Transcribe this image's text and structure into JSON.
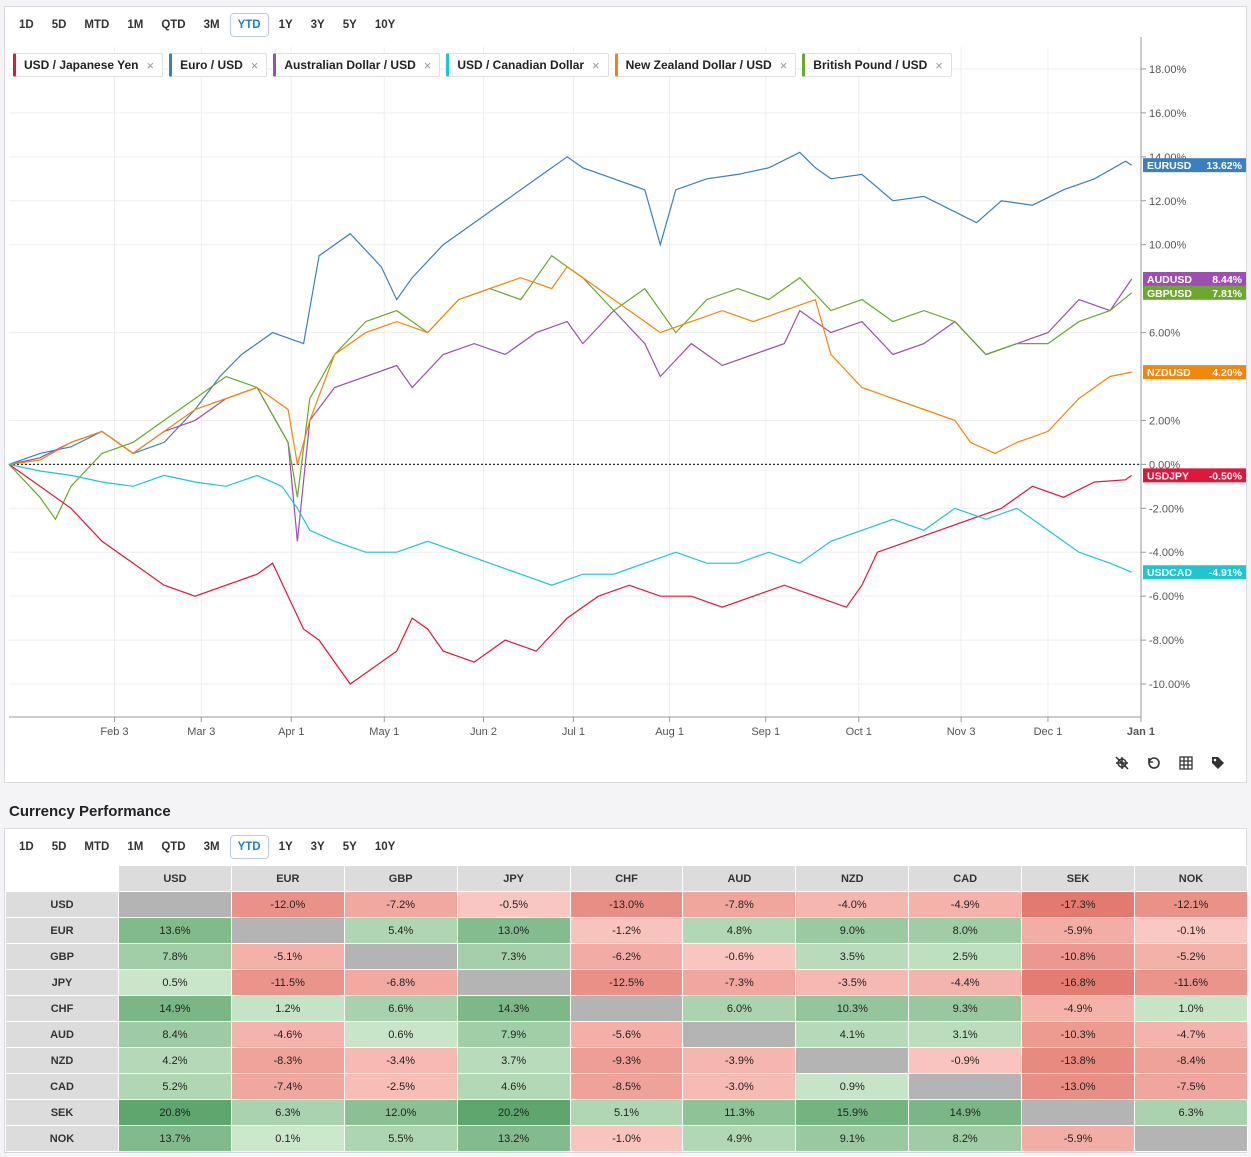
{
  "ranges": [
    "1D",
    "5D",
    "MTD",
    "1M",
    "QTD",
    "3M",
    "YTD",
    "1Y",
    "3Y",
    "5Y",
    "10Y"
  ],
  "active_range": "YTD",
  "legend": [
    {
      "label": "USD / Japanese Yen",
      "color": "#e0173c"
    },
    {
      "label": "Euro / USD",
      "color": "#3a7fc0"
    },
    {
      "label": "Australian Dollar / USD",
      "color": "#9b4fb0"
    },
    {
      "label": "USD / Canadian Dollar",
      "color": "#1ec6cf"
    },
    {
      "label": "New Zealand Dollar / USD",
      "color": "#f2860a"
    },
    {
      "label": "British Pound / USD",
      "color": "#6aa82e"
    }
  ],
  "chart_data": {
    "type": "line",
    "title": "",
    "xlabel": "",
    "ylabel": "",
    "ylim": [
      -11.5,
      19
    ],
    "ytick_values": [
      18,
      16,
      14,
      12,
      10,
      6,
      2,
      0,
      -2,
      -4,
      -6,
      -8,
      -10
    ],
    "ytick_labels": [
      "18.00%",
      "16.00%",
      "14.00%",
      "12.00%",
      "10.00%",
      "6.00%",
      "2.00%",
      "0.00%",
      "-2.00%",
      "-4.00%",
      "-6.00%",
      "-8.00%",
      "-10.00%"
    ],
    "x_range": [
      0,
      365
    ],
    "x_ticks": [
      {
        "label": "Feb 3",
        "day": 34
      },
      {
        "label": "Mar 3",
        "day": 62
      },
      {
        "label": "Apr 1",
        "day": 91
      },
      {
        "label": "May 1",
        "day": 121
      },
      {
        "label": "Jun 2",
        "day": 153
      },
      {
        "label": "Jul 1",
        "day": 182
      },
      {
        "label": "Aug 1",
        "day": 213
      },
      {
        "label": "Sep 1",
        "day": 244
      },
      {
        "label": "Oct 1",
        "day": 274
      },
      {
        "label": "Nov 3",
        "day": 307
      },
      {
        "label": "Dec 1",
        "day": 335
      },
      {
        "label": "Jan 1",
        "day": 365
      }
    ],
    "series": [
      {
        "name": "EURUSD",
        "color": "#3a7fc0",
        "last_label": "13.62%",
        "x": [
          0,
          10,
          20,
          30,
          40,
          50,
          60,
          68,
          75,
          85,
          95,
          100,
          105,
          110,
          120,
          125,
          130,
          140,
          150,
          160,
          170,
          180,
          185,
          195,
          205,
          210,
          215,
          225,
          235,
          245,
          255,
          260,
          265,
          275,
          285,
          295,
          305,
          312,
          320,
          330,
          340,
          350,
          360,
          362
        ],
        "y": [
          0,
          0.5,
          0.8,
          1.5,
          0.5,
          1.0,
          2.5,
          4.0,
          5.0,
          6.0,
          5.5,
          9.5,
          10.0,
          10.5,
          9.0,
          7.5,
          8.5,
          10.0,
          11.0,
          12.0,
          13.0,
          14.0,
          13.5,
          13.0,
          12.5,
          10.0,
          12.5,
          13.0,
          13.2,
          13.5,
          14.2,
          13.5,
          13.0,
          13.2,
          12.0,
          12.2,
          11.5,
          11.0,
          12.0,
          11.8,
          12.5,
          13.0,
          13.8,
          13.62
        ]
      },
      {
        "name": "AUDUSD",
        "color": "#9b4fb0",
        "last_label": "8.44%",
        "x": [
          0,
          10,
          20,
          30,
          40,
          50,
          60,
          70,
          80,
          90,
          93,
          97,
          105,
          115,
          125,
          130,
          140,
          150,
          160,
          170,
          180,
          185,
          195,
          205,
          210,
          220,
          230,
          240,
          250,
          255,
          265,
          275,
          285,
          295,
          305,
          315,
          325,
          335,
          345,
          355,
          362
        ],
        "y": [
          0,
          0.3,
          1.0,
          1.5,
          0.5,
          1.5,
          2.0,
          3.0,
          3.5,
          1.0,
          -3.5,
          2.0,
          3.5,
          4.0,
          4.5,
          3.5,
          5.0,
          5.5,
          5.0,
          6.0,
          6.5,
          5.5,
          7.0,
          5.5,
          4.0,
          5.5,
          4.5,
          5.0,
          5.5,
          7.0,
          6.0,
          6.5,
          5.0,
          5.5,
          6.5,
          5.0,
          5.5,
          6.0,
          7.5,
          7.0,
          8.44
        ]
      },
      {
        "name": "GBPUSD",
        "color": "#6aa82e",
        "last_label": "7.81%",
        "x": [
          0,
          10,
          15,
          20,
          30,
          40,
          50,
          60,
          70,
          80,
          90,
          93,
          97,
          105,
          115,
          125,
          135,
          145,
          155,
          165,
          175,
          185,
          195,
          205,
          215,
          225,
          235,
          245,
          255,
          265,
          275,
          285,
          295,
          305,
          315,
          325,
          335,
          345,
          355,
          362
        ],
        "y": [
          0,
          -1.5,
          -2.5,
          -1.0,
          0.5,
          1.0,
          2.0,
          3.0,
          4.0,
          3.5,
          1.0,
          -1.5,
          3.0,
          5.0,
          6.5,
          7.0,
          6.0,
          7.5,
          8.0,
          7.5,
          9.5,
          8.5,
          7.0,
          8.0,
          6.0,
          7.5,
          8.0,
          7.5,
          8.5,
          7.0,
          7.5,
          6.5,
          7.0,
          6.5,
          5.0,
          5.5,
          5.5,
          6.5,
          7.0,
          7.81
        ]
      },
      {
        "name": "NZDUSD",
        "color": "#f2860a",
        "last_label": "4.20%",
        "x": [
          0,
          10,
          20,
          30,
          40,
          50,
          60,
          70,
          80,
          90,
          93,
          97,
          105,
          115,
          125,
          135,
          145,
          155,
          165,
          175,
          180,
          190,
          200,
          210,
          220,
          230,
          240,
          250,
          260,
          265,
          275,
          285,
          295,
          305,
          310,
          318,
          325,
          335,
          345,
          355,
          362
        ],
        "y": [
          0,
          0.2,
          1.0,
          1.5,
          0.5,
          1.5,
          2.5,
          3.0,
          3.5,
          2.5,
          0,
          2.0,
          5.0,
          6.0,
          6.5,
          6.0,
          7.5,
          8.0,
          8.5,
          8.0,
          9.0,
          8.0,
          7.0,
          6.0,
          6.5,
          7.0,
          6.5,
          7.0,
          7.5,
          5.0,
          3.5,
          3.0,
          2.5,
          2.0,
          1.0,
          0.5,
          1.0,
          1.5,
          3.0,
          4.0,
          4.2
        ]
      },
      {
        "name": "USDJPY",
        "color": "#e0173c",
        "last_label": "-0.50%",
        "x": [
          0,
          10,
          20,
          30,
          40,
          50,
          60,
          70,
          80,
          85,
          90,
          95,
          100,
          105,
          110,
          115,
          120,
          125,
          130,
          135,
          140,
          150,
          160,
          170,
          180,
          190,
          200,
          210,
          220,
          230,
          240,
          250,
          260,
          270,
          275,
          280,
          290,
          300,
          310,
          320,
          330,
          340,
          350,
          360,
          362
        ],
        "y": [
          0,
          -1.0,
          -2.0,
          -3.5,
          -4.5,
          -5.5,
          -6.0,
          -5.5,
          -5.0,
          -4.5,
          -6.0,
          -7.5,
          -8.0,
          -9.0,
          -10.0,
          -9.5,
          -9.0,
          -8.5,
          -7.0,
          -7.5,
          -8.5,
          -9.0,
          -8.0,
          -8.5,
          -7.0,
          -6.0,
          -5.5,
          -6.0,
          -6.0,
          -6.5,
          -6.0,
          -5.5,
          -6.0,
          -6.5,
          -5.5,
          -4.0,
          -3.5,
          -3.0,
          -2.5,
          -2.0,
          -1.0,
          -1.5,
          -0.8,
          -0.7,
          -0.5
        ]
      },
      {
        "name": "USDCAD",
        "color": "#1ec6cf",
        "last_label": "-4.91%",
        "x": [
          0,
          10,
          20,
          30,
          40,
          50,
          60,
          70,
          80,
          88,
          93,
          97,
          105,
          115,
          125,
          135,
          145,
          155,
          165,
          175,
          185,
          195,
          205,
          215,
          225,
          235,
          245,
          255,
          265,
          275,
          285,
          295,
          305,
          315,
          325,
          335,
          345,
          355,
          362
        ],
        "y": [
          0,
          -0.3,
          -0.5,
          -0.8,
          -1.0,
          -0.5,
          -0.8,
          -1.0,
          -0.5,
          -1.0,
          -2.0,
          -3.0,
          -3.5,
          -4.0,
          -4.0,
          -3.5,
          -4.0,
          -4.5,
          -5.0,
          -5.5,
          -5.0,
          -5.0,
          -4.5,
          -4.0,
          -4.5,
          -4.5,
          -4.0,
          -4.5,
          -3.5,
          -3.0,
          -2.5,
          -3.0,
          -2.0,
          -2.5,
          -2.0,
          -3.0,
          -4.0,
          -4.5,
          -4.91
        ]
      }
    ]
  },
  "perf_title": "Currency Performance",
  "table": {
    "columns": [
      "USD",
      "EUR",
      "GBP",
      "JPY",
      "CHF",
      "AUD",
      "NZD",
      "CAD",
      "SEK",
      "NOK"
    ],
    "rows": [
      {
        "label": "USD",
        "values": [
          "",
          "-12.0%",
          "-7.2%",
          "-0.5%",
          "-13.0%",
          "-7.8%",
          "-4.0%",
          "-4.9%",
          "-17.3%",
          "-12.1%"
        ]
      },
      {
        "label": "EUR",
        "values": [
          "13.6%",
          "",
          "5.4%",
          "13.0%",
          "-1.2%",
          "4.8%",
          "9.0%",
          "8.0%",
          "-5.9%",
          "-0.1%"
        ]
      },
      {
        "label": "GBP",
        "values": [
          "7.8%",
          "-5.1%",
          "",
          "7.3%",
          "-6.2%",
          "-0.6%",
          "3.5%",
          "2.5%",
          "-10.8%",
          "-5.2%"
        ]
      },
      {
        "label": "JPY",
        "values": [
          "0.5%",
          "-11.5%",
          "-6.8%",
          "",
          "-12.5%",
          "-7.3%",
          "-3.5%",
          "-4.4%",
          "-16.8%",
          "-11.6%"
        ]
      },
      {
        "label": "CHF",
        "values": [
          "14.9%",
          "1.2%",
          "6.6%",
          "14.3%",
          "",
          "6.0%",
          "10.3%",
          "9.3%",
          "-4.9%",
          "1.0%"
        ]
      },
      {
        "label": "AUD",
        "values": [
          "8.4%",
          "-4.6%",
          "0.6%",
          "7.9%",
          "-5.6%",
          "",
          "4.1%",
          "3.1%",
          "-10.3%",
          "-4.7%"
        ]
      },
      {
        "label": "NZD",
        "values": [
          "4.2%",
          "-8.3%",
          "-3.4%",
          "3.7%",
          "-9.3%",
          "-3.9%",
          "",
          "-0.9%",
          "-13.8%",
          "-8.4%"
        ]
      },
      {
        "label": "CAD",
        "values": [
          "5.2%",
          "-7.4%",
          "-2.5%",
          "4.6%",
          "-8.5%",
          "-3.0%",
          "0.9%",
          "",
          "-13.0%",
          "-7.5%"
        ]
      },
      {
        "label": "SEK",
        "values": [
          "20.8%",
          "6.3%",
          "12.0%",
          "20.2%",
          "5.1%",
          "11.3%",
          "15.9%",
          "14.9%",
          "",
          "6.3%"
        ]
      },
      {
        "label": "NOK",
        "values": [
          "13.7%",
          "0.1%",
          "5.5%",
          "13.2%",
          "-1.0%",
          "4.9%",
          "9.1%",
          "8.2%",
          "-5.9%",
          ""
        ]
      }
    ]
  },
  "icons": [
    "crosshair-off-icon",
    "reset-zoom-icon",
    "grid-icon",
    "tag-icon"
  ]
}
